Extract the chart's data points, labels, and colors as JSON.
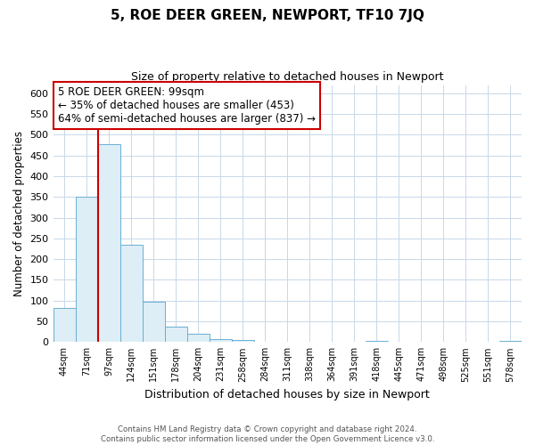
{
  "title": "5, ROE DEER GREEN, NEWPORT, TF10 7JQ",
  "subtitle": "Size of property relative to detached houses in Newport",
  "xlabel": "Distribution of detached houses by size in Newport",
  "ylabel": "Number of detached properties",
  "bar_labels": [
    "44sqm",
    "71sqm",
    "97sqm",
    "124sqm",
    "151sqm",
    "178sqm",
    "204sqm",
    "231sqm",
    "258sqm",
    "284sqm",
    "311sqm",
    "338sqm",
    "364sqm",
    "391sqm",
    "418sqm",
    "445sqm",
    "471sqm",
    "498sqm",
    "525sqm",
    "551sqm",
    "578sqm"
  ],
  "bar_values": [
    83,
    350,
    478,
    235,
    97,
    37,
    19,
    8,
    4,
    0,
    0,
    0,
    0,
    0,
    2,
    0,
    0,
    0,
    0,
    0,
    2
  ],
  "bar_color": "#ddeef6",
  "bar_edge_color": "#6aafd4",
  "highlight_bar_index": 2,
  "highlight_line_color": "#cc0000",
  "property_size": "99sqm",
  "pct_smaller": 35,
  "n_smaller": 453,
  "pct_larger": 64,
  "n_larger": 837,
  "annotation_box_edge": "#cc0000",
  "ylim": [
    0,
    620
  ],
  "yticks": [
    0,
    50,
    100,
    150,
    200,
    250,
    300,
    350,
    400,
    450,
    500,
    550,
    600
  ],
  "footer_line1": "Contains HM Land Registry data © Crown copyright and database right 2024.",
  "footer_line2": "Contains public sector information licensed under the Open Government Licence v3.0.",
  "background_color": "#ffffff",
  "grid_color": "#c8d8e8",
  "title_fontsize": 11,
  "subtitle_fontsize": 9
}
